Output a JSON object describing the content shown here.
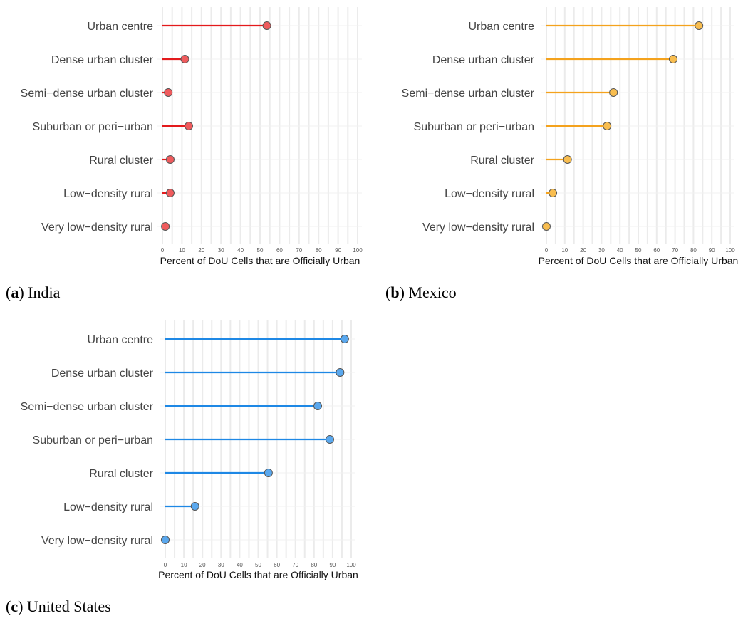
{
  "chart_data": [
    {
      "type": "lollipop",
      "panel": "a",
      "caption": "India",
      "color": "#e31a1c",
      "point_fill": "#ef5b5d",
      "categories": [
        "Urban centre",
        "Dense urban cluster",
        "Semi−dense urban cluster",
        "Suburban or peri−urban",
        "Rural cluster",
        "Low−density rural",
        "Very low−density rural"
      ],
      "values": [
        53.5,
        11.5,
        3,
        13.5,
        4,
        4,
        1.5
      ],
      "xlabel": "Percent of DoU Cells that are Officially Urban",
      "xlim": [
        0,
        100
      ],
      "xticks": [
        0,
        10,
        20,
        30,
        40,
        50,
        60,
        70,
        80,
        90,
        100
      ]
    },
    {
      "type": "lollipop",
      "panel": "b",
      "caption": "Mexico",
      "color": "#f4a21d",
      "point_fill": "#f8bd4f",
      "categories": [
        "Urban centre",
        "Dense urban cluster",
        "Semi−dense urban cluster",
        "Suburban or peri−urban",
        "Rural cluster",
        "Low−density rural",
        "Very low−density rural"
      ],
      "values": [
        83,
        69,
        36.5,
        33,
        11.5,
        3.5,
        0
      ],
      "xlabel": "Percent of DoU Cells that are Officially Urban",
      "xlim": [
        0,
        100
      ],
      "xticks": [
        0,
        10,
        20,
        30,
        40,
        50,
        60,
        70,
        80,
        90,
        100
      ]
    },
    {
      "type": "lollipop",
      "panel": "c",
      "caption": "United States",
      "color": "#1e88e5",
      "point_fill": "#5aa8ee",
      "categories": [
        "Urban centre",
        "Dense urban cluster",
        "Semi−dense urban cluster",
        "Suburban or peri−urban",
        "Rural cluster",
        "Low−density rural",
        "Very low−density rural"
      ],
      "values": [
        96.5,
        94,
        82,
        88.5,
        55.5,
        16,
        0
      ],
      "xlabel": "Percent of DoU Cells that are Officially Urban",
      "xlim": [
        0,
        100
      ],
      "xticks": [
        0,
        10,
        20,
        30,
        40,
        50,
        60,
        70,
        80,
        90,
        100
      ]
    }
  ]
}
